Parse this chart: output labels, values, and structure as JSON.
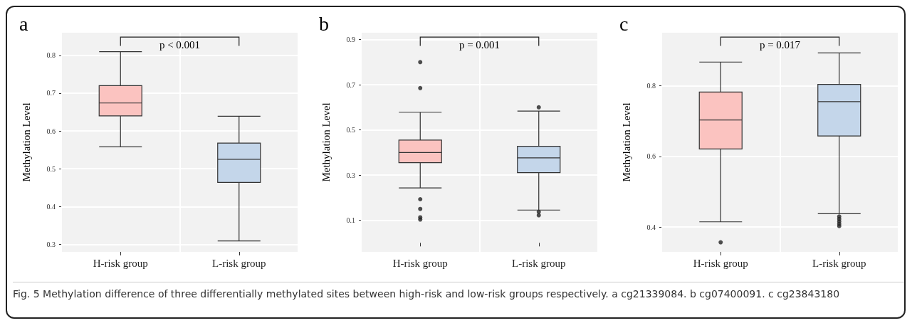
{
  "chart_data": [
    {
      "type": "box",
      "title": "a",
      "ylabel": "Methylation Level",
      "categories": [
        "H-risk group",
        "L-risk group"
      ],
      "colors": [
        "#fbc3c0",
        "#c4d6ea"
      ],
      "boxes": [
        {
          "low": 0.558,
          "q1": 0.64,
          "median": 0.674,
          "q3": 0.72,
          "high": 0.81
        },
        {
          "low": 0.309,
          "q1": 0.464,
          "median": 0.525,
          "q3": 0.568,
          "high": 0.639
        }
      ],
      "ylim": [
        0.28,
        0.86
      ],
      "yticks": [
        0.3,
        0.4,
        0.5,
        0.6,
        0.7,
        0.8
      ],
      "grid": true,
      "annotations": [
        "p < 0.001"
      ]
    },
    {
      "type": "box",
      "title": "b",
      "ylabel": "Methylation Level",
      "categories": [
        "H-risk group",
        "L-risk group"
      ],
      "colors": [
        "#fbc3c0",
        "#c4d6ea"
      ],
      "boxes": [
        {
          "low": 0.243,
          "q1": 0.355,
          "median": 0.4,
          "q3": 0.455,
          "high": 0.578,
          "outliers": [
            0.8,
            0.685,
            0.193,
            0.15,
            0.113,
            0.103
          ]
        },
        {
          "low": 0.145,
          "q1": 0.311,
          "median": 0.376,
          "q3": 0.427,
          "high": 0.583,
          "outliers": [
            0.6,
            0.137,
            0.122
          ]
        }
      ],
      "ylim": [
        -0.04,
        0.93
      ],
      "yticks": [
        0.1,
        0.3,
        0.5,
        0.7,
        0.9
      ],
      "grid": true,
      "annotations": [
        "p = 0.001"
      ]
    },
    {
      "type": "box",
      "title": "c",
      "ylabel": "Methylation Level",
      "categories": [
        "H-risk group",
        "L-risk group"
      ],
      "colors": [
        "#fbc3c0",
        "#c4d6ea"
      ],
      "boxes": [
        {
          "low": 0.415,
          "q1": 0.621,
          "median": 0.703,
          "q3": 0.782,
          "high": 0.867,
          "outliers": [
            0.357
          ]
        },
        {
          "low": 0.438,
          "q1": 0.658,
          "median": 0.755,
          "q3": 0.804,
          "high": 0.893,
          "outliers": [
            0.43,
            0.423,
            0.416,
            0.409,
            0.403
          ]
        }
      ],
      "ylim": [
        0.33,
        0.95
      ],
      "yticks": [
        0.4,
        0.6,
        0.8
      ],
      "grid": true,
      "annotations": [
        "p = 0.017",
        "Fig. 5 Methylation difference of three differentially methylated sites between high-risk and low-risk groups respectively. a cg21339084. b cg07400091. c cg23843180"
      ]
    }
  ]
}
